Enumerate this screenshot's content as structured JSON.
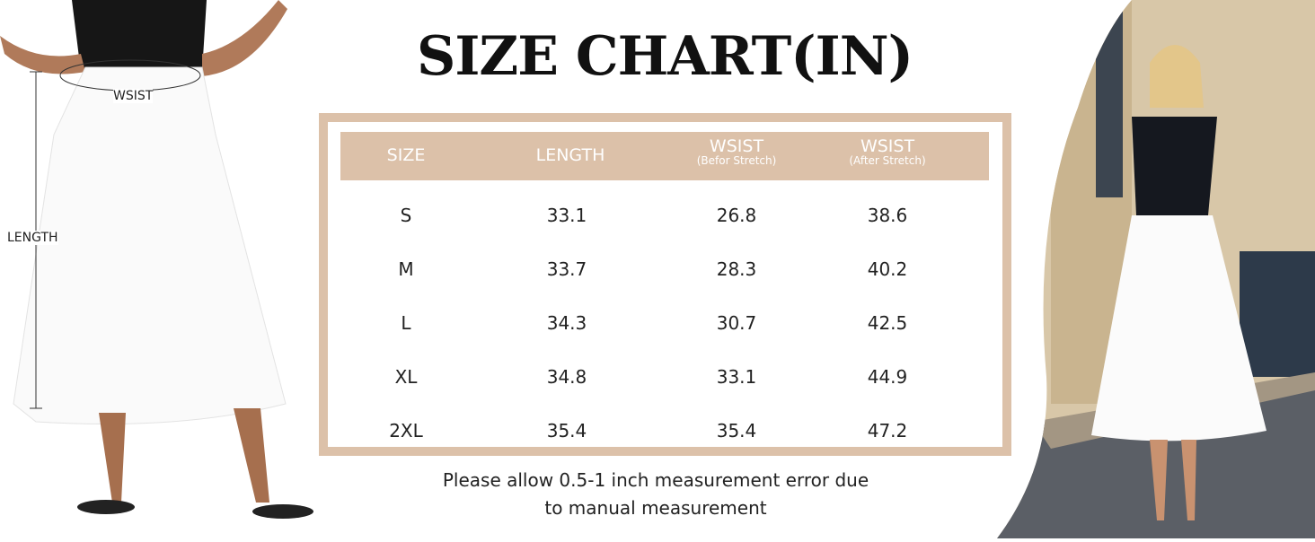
{
  "title": "SIZE CHART(IN)",
  "colors": {
    "accent": "#dcc1a9",
    "header_text": "#ffffff"
  },
  "left_image": {
    "waist_label": "WSIST",
    "length_label": "LENGTH"
  },
  "table": {
    "headers": [
      {
        "main": "SIZE",
        "sub": ""
      },
      {
        "main": "LENGTH",
        "sub": ""
      },
      {
        "main": "WSIST",
        "sub": "(Befor Stretch)"
      },
      {
        "main": "WSIST",
        "sub": "(After Stretch)"
      }
    ],
    "rows": [
      [
        "S",
        "33.1",
        "26.8",
        "38.6"
      ],
      [
        "M",
        "33.7",
        "28.3",
        "40.2"
      ],
      [
        "L",
        "34.3",
        "30.7",
        "42.5"
      ],
      [
        "XL",
        "34.8",
        "33.1",
        "44.9"
      ],
      [
        "2XL",
        "35.4",
        "35.4",
        "47.2"
      ]
    ]
  },
  "note": {
    "line1": "Please allow 0.5-1 inch measurement error due",
    "line2": "to manual measurement"
  }
}
